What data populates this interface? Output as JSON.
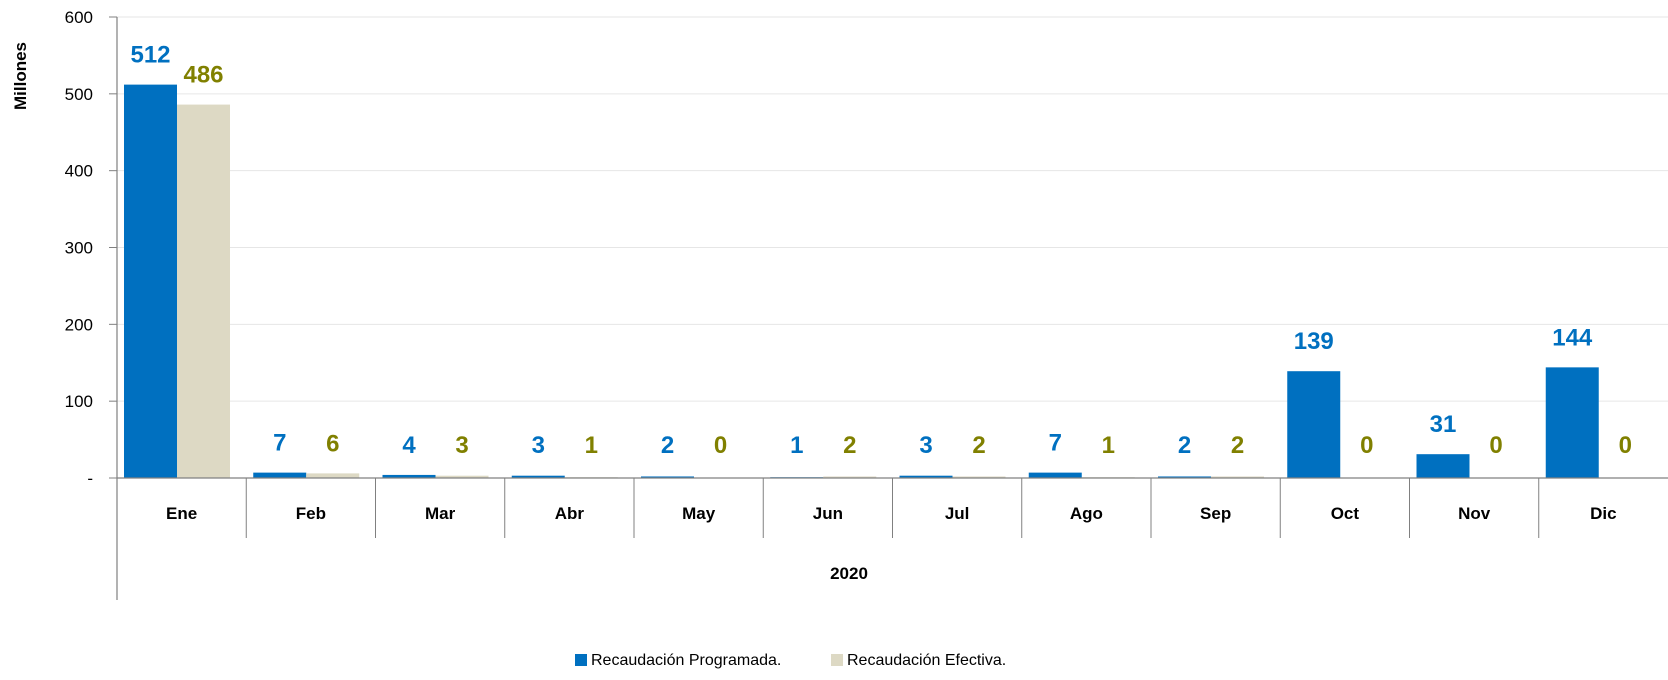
{
  "chart_data": {
    "type": "bar",
    "title": "",
    "ylabel": "Millones",
    "xlabel": "2020",
    "ylim": [
      0,
      600
    ],
    "yticks": [
      0,
      100,
      200,
      300,
      400,
      500,
      600
    ],
    "ytick_labels": [
      "-",
      "100",
      "200",
      "300",
      "400",
      "500",
      "600"
    ],
    "categories": [
      "Ene",
      "Feb",
      "Mar",
      "Abr",
      "May",
      "Jun",
      "Jul",
      "Ago",
      "Sep",
      "Oct",
      "Nov",
      "Dic"
    ],
    "series": [
      {
        "name": "Recaudación Programada.",
        "color": "#0070C0",
        "label_color": "#0070C0",
        "values": [
          512,
          7,
          4,
          3,
          2,
          1,
          3,
          7,
          2,
          139,
          31,
          144
        ],
        "labels": [
          "512",
          "7",
          "4",
          "3",
          "2",
          "1",
          "3",
          "7",
          "2",
          "139",
          "31",
          "144"
        ]
      },
      {
        "name": "Recaudación Efectiva.",
        "color": "#DDD9C4",
        "label_color": "#808000",
        "values": [
          486,
          6,
          3,
          1,
          0,
          2,
          2,
          1,
          2,
          0,
          0,
          0
        ],
        "labels": [
          "486",
          "6",
          "3",
          "1",
          "0",
          "2",
          "2",
          "1",
          "2",
          "0",
          "0",
          "0"
        ]
      }
    ],
    "grid": true,
    "legend_position": "bottom-center"
  }
}
